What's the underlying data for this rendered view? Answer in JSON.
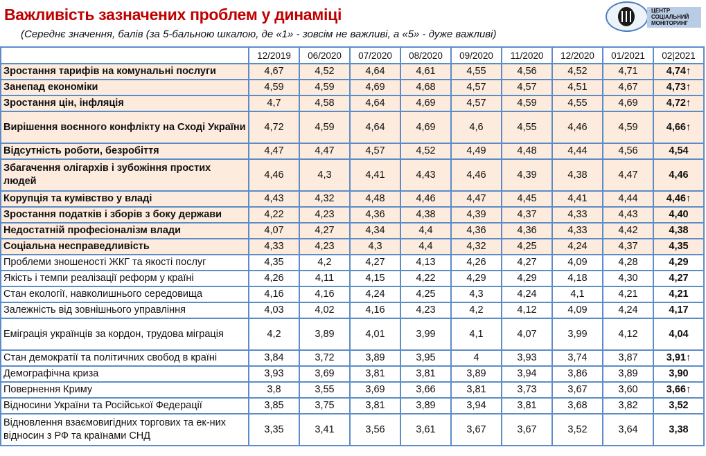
{
  "title": "Важливість зазначених проблем у динаміці",
  "subtitle": "(Середнє значення, балів (за 5-бальною шкалою,  де «1» - зовсім не важливі, а «5» - дуже важливі)",
  "logo_text": [
    "ЦЕНТР",
    "СОЦІАЛЬНИЙ",
    "МОНІТОРИНГ"
  ],
  "columns": [
    "12/2019",
    "06/2020",
    "07/2020",
    "08/2020",
    "09/2020",
    "11/2020",
    "12/2020",
    "01/2021",
    "02|2021"
  ],
  "rows": [
    {
      "label": "Зростання тарифів на комунальні послуги",
      "values": [
        "4,67",
        "4,52",
        "4,64",
        "4,61",
        "4,55",
        "4,56",
        "4,52",
        "4,71",
        "4,74"
      ],
      "up": true,
      "highlight": true
    },
    {
      "label": "Занепад економіки",
      "values": [
        "4,59",
        "4,59",
        "4,69",
        "4,68",
        "4,57",
        "4,57",
        "4,51",
        "4,67",
        "4,73"
      ],
      "up": true,
      "highlight": true
    },
    {
      "label": "Зростання цін, інфляція",
      "values": [
        "4,7",
        "4,58",
        "4,64",
        "4,69",
        "4,57",
        "4,59",
        "4,55",
        "4,69",
        "4,72"
      ],
      "up": true,
      "highlight": true
    },
    {
      "label": "Вирішення воєнного конфлікту на Сході України",
      "values": [
        "4,72",
        "4,59",
        "4,64",
        "4,69",
        "4,6",
        "4,55",
        "4,46",
        "4,59",
        "4,66"
      ],
      "up": true,
      "highlight": true,
      "tall": true
    },
    {
      "label": "Відсутність роботи, безробіття",
      "values": [
        "4,47",
        "4,47",
        "4,57",
        "4,52",
        "4,49",
        "4,48",
        "4,44",
        "4,56",
        "4,54"
      ],
      "up": false,
      "highlight": true
    },
    {
      "label": "Збагачення олігархів і зубожіння простих людей",
      "values": [
        "4,46",
        "4,3",
        "4,41",
        "4,43",
        "4,46",
        "4,39",
        "4,38",
        "4,47",
        "4,46"
      ],
      "up": false,
      "highlight": true,
      "tall": true
    },
    {
      "label": "Корупція та кумівство у владі",
      "values": [
        "4,43",
        "4,32",
        "4,48",
        "4,46",
        "4,47",
        "4,45",
        "4,41",
        "4,44",
        "4,46"
      ],
      "up": true,
      "highlight": true
    },
    {
      "label": "Зростання податків і зборів з боку держави",
      "values": [
        "4,22",
        "4,23",
        "4,36",
        "4,38",
        "4,39",
        "4,37",
        "4,33",
        "4,43",
        "4,40"
      ],
      "up": false,
      "highlight": true
    },
    {
      "label": "Недостатній професіоналізм влади",
      "values": [
        "4,07",
        "4,27",
        "4,34",
        "4,4",
        "4,36",
        "4,36",
        "4,33",
        "4,42",
        "4,38"
      ],
      "up": false,
      "highlight": true
    },
    {
      "label": "Соціальна несправедливість",
      "values": [
        "4,33",
        "4,23",
        "4,3",
        "4,4",
        "4,32",
        "4,25",
        "4,24",
        "4,37",
        "4,35"
      ],
      "up": false,
      "highlight": true
    },
    {
      "label": "Проблеми зношеності ЖКГ та якості послуг",
      "values": [
        "4,35",
        "4,2",
        "4,27",
        "4,13",
        "4,26",
        "4,27",
        "4,09",
        "4,28",
        "4,29"
      ],
      "up": false,
      "highlight": false
    },
    {
      "label": "Якість і темпи реалізації реформ у країні",
      "values": [
        "4,26",
        "4,11",
        "4,15",
        "4,22",
        "4,29",
        "4,29",
        "4,18",
        "4,30",
        "4,27"
      ],
      "up": false,
      "highlight": false
    },
    {
      "label": "Стан екології, навколишнього середовища",
      "values": [
        "4,16",
        "4,16",
        "4,24",
        "4,25",
        "4,3",
        "4,24",
        "4,1",
        "4,21",
        "4,21"
      ],
      "up": false,
      "highlight": false
    },
    {
      "label": "Залежність від зовнішнього управління",
      "values": [
        "4,03",
        "4,02",
        "4,16",
        "4,23",
        "4,2",
        "4,12",
        "4,09",
        "4,24",
        "4,17"
      ],
      "up": false,
      "highlight": false
    },
    {
      "label": "Еміграція українців за кордон, трудова міграція",
      "values": [
        "4,2",
        "3,89",
        "4,01",
        "3,99",
        "4,1",
        "4,07",
        "3,99",
        "4,12",
        "4,04"
      ],
      "up": false,
      "highlight": false,
      "tall": true
    },
    {
      "label": "Стан демократії та політичних свобод в країні",
      "values": [
        "3,84",
        "3,72",
        "3,89",
        "3,95",
        "4",
        "3,93",
        "3,74",
        "3,87",
        "3,91"
      ],
      "up": true,
      "highlight": false
    },
    {
      "label": "Демографічна криза",
      "values": [
        "3,93",
        "3,69",
        "3,81",
        "3,81",
        "3,89",
        "3,94",
        "3,86",
        "3,89",
        "3,90"
      ],
      "up": false,
      "highlight": false
    },
    {
      "label": "Повернення Криму",
      "values": [
        "3,8",
        "3,55",
        "3,69",
        "3,66",
        "3,81",
        "3,73",
        "3,67",
        "3,60",
        "3,66"
      ],
      "up": true,
      "highlight": false
    },
    {
      "label": "Відносини України та Російської Федерації",
      "values": [
        "3,85",
        "3,75",
        "3,81",
        "3,89",
        "3,94",
        "3,81",
        "3,68",
        "3,82",
        "3,52"
      ],
      "up": false,
      "highlight": false
    },
    {
      "label": "Відновлення взаємовигідних торгових та ек-них відносин з РФ та країнами СНД",
      "values": [
        "3,35",
        "3,41",
        "3,56",
        "3,61",
        "3,67",
        "3,67",
        "3,52",
        "3,64",
        "3,38"
      ],
      "up": false,
      "highlight": false,
      "tall": true
    }
  ],
  "arrow_symbol": "↑"
}
